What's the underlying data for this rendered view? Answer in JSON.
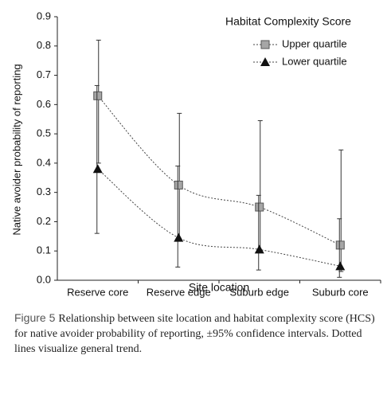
{
  "chart_data": {
    "type": "line",
    "y_label": "Native avoider probability of reporting",
    "x_label": "Site location",
    "categories": [
      "Reserve core",
      "Reserve edge",
      "Suburb edge",
      "Suburb core"
    ],
    "ylim": [
      0,
      0.9
    ],
    "yticks": [
      {
        "value": 0,
        "label": "0.0"
      },
      0.1,
      0.2,
      0.3,
      0.4,
      0.5,
      0.6,
      0.7,
      0.8,
      0.9
    ],
    "legend_title": "Habitat Complexity Score",
    "legend": "upper right",
    "series": [
      {
        "name": "Upper quartile",
        "color": "#a6a6a6",
        "marker": "square",
        "values": [
          0.63,
          0.325,
          0.25,
          0.12
        ],
        "ci_low": [
          0.4,
          0.14,
          0.1,
          0.03
        ],
        "ci_high": [
          0.82,
          0.57,
          0.545,
          0.445
        ]
      },
      {
        "name": "Lower quartile",
        "color": "#111111",
        "marker": "triangle",
        "values": [
          0.38,
          0.145,
          0.105,
          0.048
        ],
        "ci_low": [
          0.16,
          0.045,
          0.035,
          0.01
        ],
        "ci_high": [
          0.665,
          0.39,
          0.29,
          0.21
        ]
      }
    ]
  },
  "caption": {
    "label": "Figure 5",
    "text": "Relationship between site location and habitat complexity score (HCS) for native avoider probability of reporting, ±95% confidence intervals. Dotted lines visualize general trend."
  }
}
